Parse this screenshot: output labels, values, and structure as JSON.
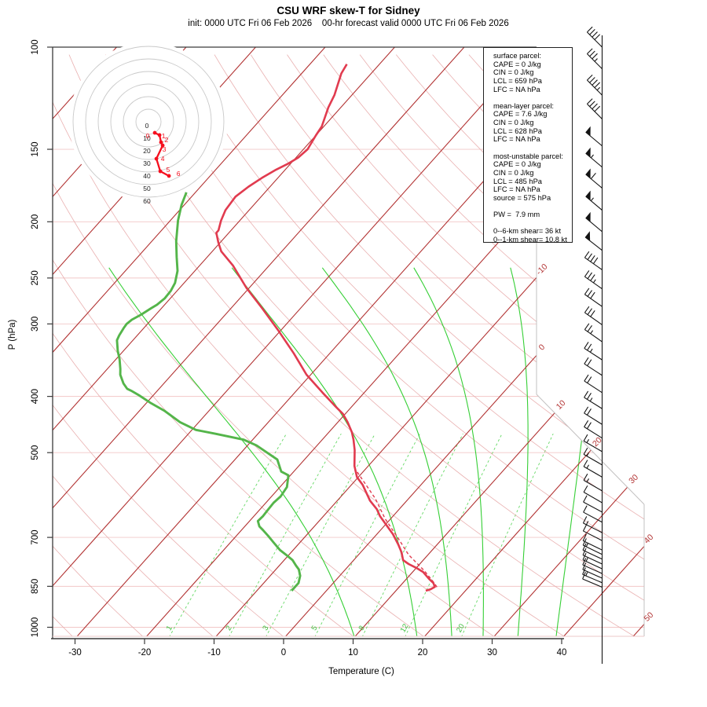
{
  "title": "CSU WRF skew-T for Sidney",
  "subtitle": "init: 0000 UTC Fri 06 Feb 2026    00-hr forecast valid 0000 UTC Fri 06 Feb 2026",
  "axes": {
    "x_label": "Temperature (C)",
    "y_label": "P (hPa)",
    "x_ticks": [
      -30,
      -20,
      -10,
      0,
      10,
      20,
      30,
      40
    ],
    "p_ticks": [
      100,
      150,
      200,
      250,
      300,
      400,
      500,
      700,
      850,
      1000
    ]
  },
  "info_box": {
    "lines": [
      "surface parcel:",
      "CAPE = 0 J/kg",
      "CIN = 0 J/kg",
      "LCL = 659 hPa",
      "LFC = NA hPa",
      "",
      "mean-layer parcel:",
      "CAPE = 7.6 J/kg",
      "CIN = 0 J/kg",
      "LCL = 628 hPa",
      "LFC = NA hPa",
      "",
      "most-unstable parcel:",
      "CAPE = 0 J/kg",
      "CIN = 0 J/kg",
      "LCL = 485 hPa",
      "LFC = NA hPa",
      "source = 575 hPa",
      "",
      "PW =  7.9 mm",
      "",
      "0--6-km shear= 36 kt",
      "0--1-km shear= 10.8 kt"
    ]
  },
  "colors": {
    "temp": "#e13b4f",
    "dew": "#54b54a",
    "moist": "#35cf35",
    "mix": "#66d966",
    "mix_label": "#3cbf3c",
    "isotherm": "#b23333",
    "dry": "#e9b0b0",
    "isobar": "#f2c7c7",
    "frame_dark": "#3a3a3a",
    "frame_light": "#c2c0c0",
    "bottom_frame": "#eec9c9",
    "barb": "#141414",
    "hodo_ring": "#c9c9c9",
    "hodo_trace": "#f50f1e",
    "text": "#000000"
  },
  "chart_data": {
    "type": "line",
    "subtype": "skewT-logP sounding",
    "station": "Sidney",
    "pressure_range_hpa": [
      100,
      1050
    ],
    "isotherm_edge_labels_c": [
      -10,
      0,
      10,
      20,
      30,
      40,
      50
    ],
    "isotherm_family_c": {
      "start": -120,
      "end": 50,
      "step": 10
    },
    "dry_adiabats_theta_k": {
      "start": 240,
      "end": 440,
      "step": 10
    },
    "moist_adiabats_start_c": [
      10,
      19,
      24,
      28.5,
      33.5,
      39
    ],
    "mixing_ratio_lines_gkg": [
      1,
      2,
      3,
      5,
      8,
      12,
      20
    ],
    "temperature_profile_p_t": [
      [
        107,
        -64.7
      ],
      [
        111,
        -64.3
      ],
      [
        121,
        -62.5
      ],
      [
        127,
        -61.8
      ],
      [
        137,
        -60.3
      ],
      [
        142,
        -60.0
      ],
      [
        150,
        -59.4
      ],
      [
        155,
        -59.7
      ],
      [
        159,
        -60.4
      ],
      [
        163,
        -61.4
      ],
      [
        168,
        -62.3
      ],
      [
        174,
        -63.1
      ],
      [
        181,
        -63.7
      ],
      [
        191,
        -63.4
      ],
      [
        199,
        -62.7
      ],
      [
        207,
        -61.8
      ],
      [
        209,
        -61.8
      ],
      [
        217,
        -60.3
      ],
      [
        225,
        -58.7
      ],
      [
        238,
        -55.2
      ],
      [
        260,
        -50.4
      ],
      [
        282,
        -45.5
      ],
      [
        307,
        -40.5
      ],
      [
        337,
        -35.2
      ],
      [
        367,
        -30.6
      ],
      [
        394,
        -26.0
      ],
      [
        416,
        -22.4
      ],
      [
        429,
        -20.3
      ],
      [
        443,
        -18.6
      ],
      [
        461,
        -16.7
      ],
      [
        475,
        -15.5
      ],
      [
        495,
        -14.0
      ],
      [
        527,
        -12.0
      ],
      [
        551,
        -10.2
      ],
      [
        568,
        -8.4
      ],
      [
        605,
        -5.3
      ],
      [
        626,
        -3.2
      ],
      [
        643,
        -1.9
      ],
      [
        670,
        0.5
      ],
      [
        691,
        2.3
      ],
      [
        720,
        4.4
      ],
      [
        743,
        5.9
      ],
      [
        766,
        7.1
      ],
      [
        778,
        8.4
      ],
      [
        790,
        10.0
      ],
      [
        803,
        11.5
      ],
      [
        826,
        13.3
      ],
      [
        839,
        14.4
      ],
      [
        852,
        15.1
      ],
      [
        860,
        14.8
      ],
      [
        865,
        14.3
      ]
    ],
    "dewpoint_profile_p_t": [
      [
        178,
        -71.3
      ],
      [
        187,
        -70.4
      ],
      [
        199,
        -68.9
      ],
      [
        216,
        -66.5
      ],
      [
        230,
        -64.4
      ],
      [
        243,
        -62.5
      ],
      [
        255,
        -61.3
      ],
      [
        263,
        -60.9
      ],
      [
        271,
        -60.8
      ],
      [
        278,
        -61.1
      ],
      [
        282,
        -61.5
      ],
      [
        289,
        -62.1
      ],
      [
        295,
        -62.8
      ],
      [
        300,
        -63.0
      ],
      [
        305,
        -62.9
      ],
      [
        314,
        -62.6
      ],
      [
        320,
        -62.3
      ],
      [
        334,
        -60.8
      ],
      [
        345,
        -59.5
      ],
      [
        359,
        -58.1
      ],
      [
        367,
        -57.4
      ],
      [
        380,
        -55.8
      ],
      [
        388,
        -54.6
      ],
      [
        391,
        -53.8
      ],
      [
        398,
        -52.1
      ],
      [
        411,
        -49.3
      ],
      [
        424,
        -46.3
      ],
      [
        443,
        -42.7
      ],
      [
        457,
        -39.4
      ],
      [
        464,
        -36.1
      ],
      [
        475,
        -31.3
      ],
      [
        486,
        -28.7
      ],
      [
        498,
        -26.6
      ],
      [
        514,
        -23.9
      ],
      [
        539,
        -21.8
      ],
      [
        547,
        -20.3
      ],
      [
        573,
        -19.0
      ],
      [
        595,
        -18.7
      ],
      [
        610,
        -18.9
      ],
      [
        629,
        -18.8
      ],
      [
        643,
        -18.7
      ],
      [
        656,
        -18.8
      ],
      [
        670,
        -17.9
      ],
      [
        680,
        -16.9
      ],
      [
        696,
        -15.4
      ],
      [
        713,
        -13.9
      ],
      [
        736,
        -11.9
      ],
      [
        752,
        -10.2
      ],
      [
        766,
        -8.8
      ],
      [
        783,
        -7.6
      ],
      [
        795,
        -6.7
      ],
      [
        815,
        -5.7
      ],
      [
        839,
        -5.0
      ],
      [
        865,
        -5.0
      ]
    ],
    "parcel_path_p_t": [
      [
        540,
        -10.8
      ],
      [
        600,
        -4.8
      ],
      [
        650,
        -0.8
      ],
      [
        700,
        3.4
      ],
      [
        750,
        7.2
      ],
      [
        800,
        11.6
      ],
      [
        840,
        14.6
      ],
      [
        858,
        15.8
      ]
    ],
    "wind_barbs_p_kt_dir": [
      [
        100,
        40,
        315
      ],
      [
        109,
        35,
        315
      ],
      [
        121,
        45,
        315
      ],
      [
        133,
        40,
        315
      ],
      [
        148,
        50,
        310
      ],
      [
        161,
        55,
        310
      ],
      [
        175,
        60,
        310
      ],
      [
        191,
        55,
        310
      ],
      [
        208,
        50,
        310
      ],
      [
        224,
        50,
        308
      ],
      [
        242,
        40,
        305
      ],
      [
        261,
        35,
        305
      ],
      [
        280,
        30,
        305
      ],
      [
        301,
        30,
        305
      ],
      [
        322,
        25,
        305
      ],
      [
        346,
        25,
        303
      ],
      [
        368,
        20,
        303
      ],
      [
        394,
        20,
        303
      ],
      [
        420,
        25,
        302
      ],
      [
        447,
        20,
        302
      ],
      [
        472,
        20,
        302
      ],
      [
        498,
        15,
        300
      ],
      [
        525,
        15,
        300
      ],
      [
        551,
        15,
        300
      ],
      [
        582,
        15,
        300
      ],
      [
        610,
        10,
        300
      ],
      [
        633,
        10,
        298
      ],
      [
        659,
        10,
        298
      ],
      [
        687,
        15,
        297
      ],
      [
        709,
        10,
        297
      ],
      [
        736,
        10,
        296
      ],
      [
        749,
        15,
        296
      ],
      [
        763,
        10,
        295
      ],
      [
        778,
        10,
        295
      ],
      [
        793,
        15,
        295
      ],
      [
        808,
        10,
        294
      ],
      [
        823,
        10,
        294
      ],
      [
        838,
        15,
        293
      ],
      [
        853,
        10,
        293
      ]
    ],
    "hodograph": {
      "ring_labels_kt": [
        0,
        10,
        20,
        30,
        40,
        50,
        60
      ],
      "trace_uv_kt": [
        [
          5.0,
          -8.8
        ],
        [
          8.8,
          -10.6
        ],
        [
          10.0,
          -16.3
        ],
        [
          11.3,
          -18.8
        ],
        [
          6.3,
          -29.4
        ],
        [
          9.4,
          -39.4
        ],
        [
          16.3,
          -43.1
        ]
      ],
      "km_labels": [
        "0",
        "1",
        "2",
        "3",
        "4",
        "5",
        "6"
      ]
    }
  }
}
